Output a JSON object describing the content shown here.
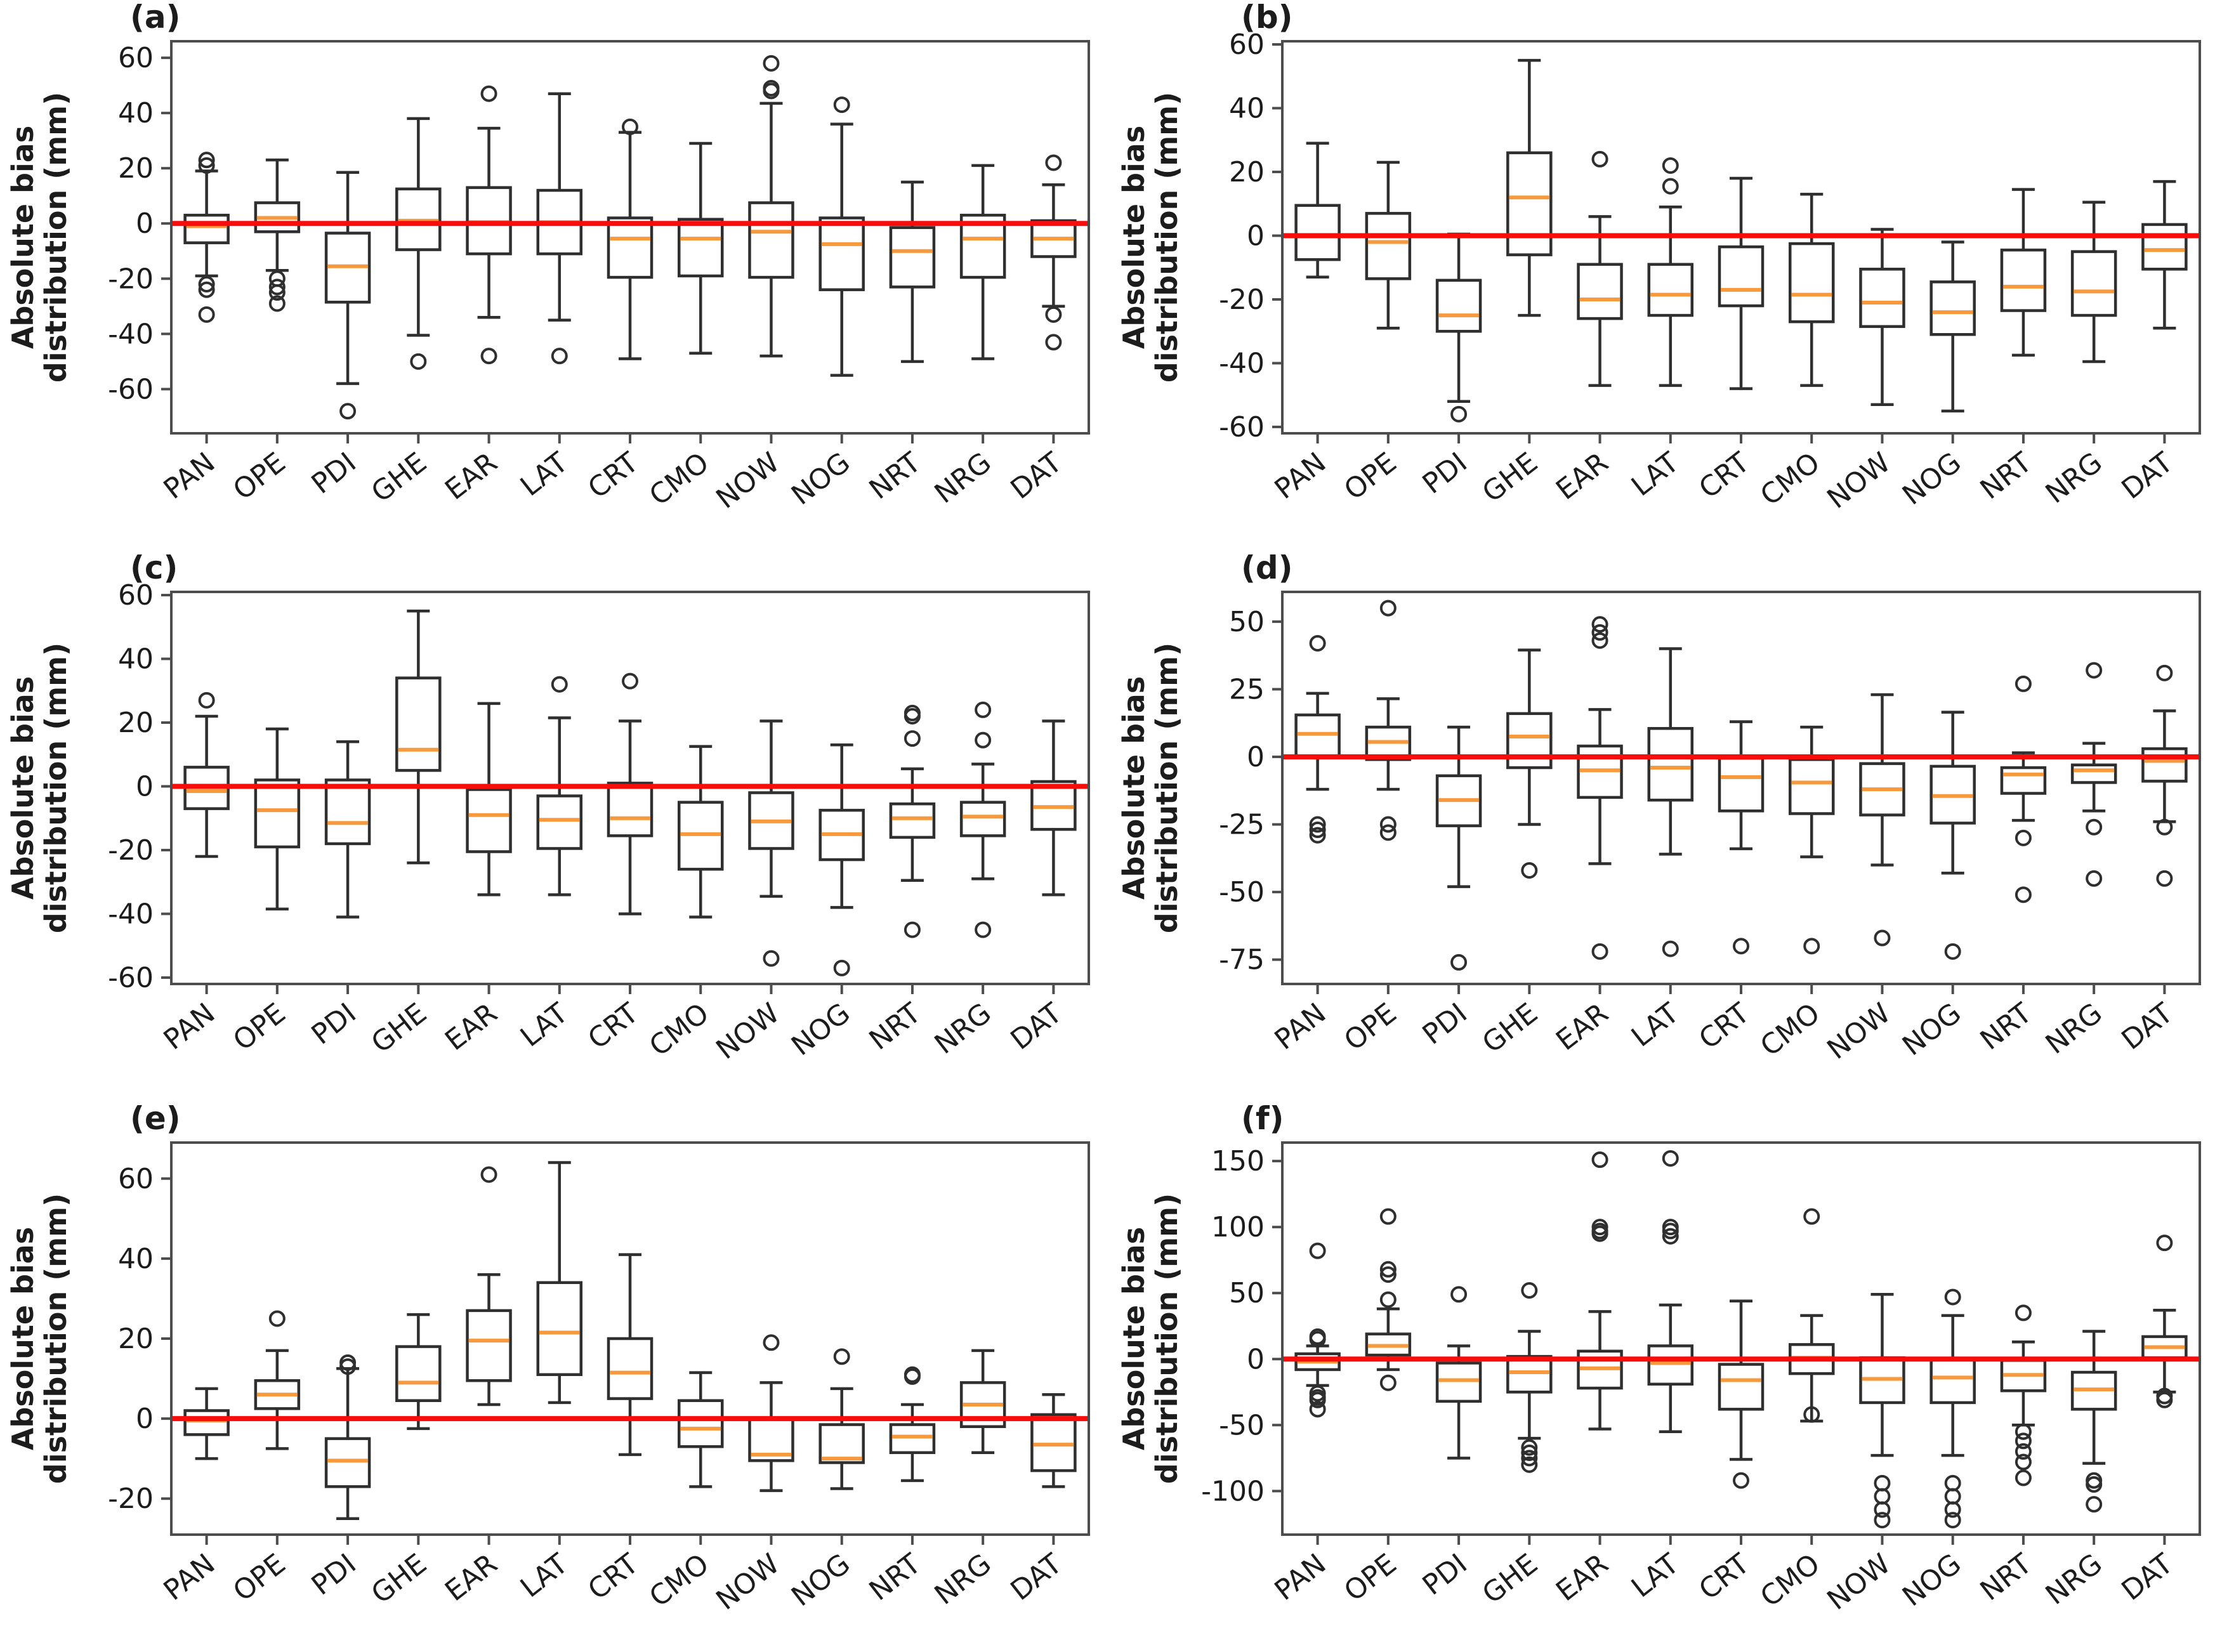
{
  "figure": {
    "ylabel_line1": "Absolute bias",
    "ylabel_line2": "distribution (mm)",
    "categories": [
      "PAN",
      "OPE",
      "PDI",
      "GHE",
      "EAR",
      "LAT",
      "CRT",
      "CMO",
      "NOW",
      "NOG",
      "NRT",
      "NRG",
      "DAT"
    ],
    "colors": {
      "box_stroke": "#2f2f2f",
      "median": "#f79a3d",
      "zero_line": "#f90d0b",
      "frame": "#4d4d4d",
      "tick_text": "#1c1c1c",
      "background": "#ffffff"
    }
  },
  "chart_data": [
    {
      "type": "box",
      "label": "(a)",
      "ylabel": "Absolute bias distribution (mm)",
      "yticks": [
        -60,
        -40,
        -20,
        0,
        20,
        40,
        60
      ],
      "ylim": [
        -76,
        66
      ],
      "zero_line": 0,
      "categories": [
        "PAN",
        "OPE",
        "PDI",
        "GHE",
        "EAR",
        "LAT",
        "CRT",
        "CMO",
        "NOW",
        "NOG",
        "NRT",
        "NRG",
        "DAT"
      ],
      "boxes": [
        {
          "lo": -19,
          "q1": -7,
          "med": -1,
          "q3": 3,
          "hi": 19,
          "out": [
            23,
            21,
            -22,
            -24,
            -33
          ]
        },
        {
          "lo": -17,
          "q1": -3,
          "med": 2,
          "q3": 7.5,
          "hi": 23,
          "out": [
            -20,
            -23,
            -25,
            -29
          ]
        },
        {
          "lo": -58,
          "q1": -28.5,
          "med": -15.5,
          "q3": -3.5,
          "hi": 18.5,
          "out": [
            -68
          ]
        },
        {
          "lo": -40.5,
          "q1": -9.5,
          "med": 1,
          "q3": 12.5,
          "hi": 38,
          "out": [
            -50
          ]
        },
        {
          "lo": -34,
          "q1": -11,
          "med": 0.5,
          "q3": 13,
          "hi": 34.5,
          "out": [
            47,
            -48
          ]
        },
        {
          "lo": -35,
          "q1": -11,
          "med": 0.5,
          "q3": 12,
          "hi": 47,
          "out": [
            -48
          ]
        },
        {
          "lo": -49,
          "q1": -19.5,
          "med": -5.5,
          "q3": 2,
          "hi": 33,
          "out": [
            35
          ]
        },
        {
          "lo": -47,
          "q1": -19,
          "med": -5.5,
          "q3": 1.5,
          "hi": 29,
          "out": []
        },
        {
          "lo": -48,
          "q1": -19.5,
          "med": -3,
          "q3": 7.5,
          "hi": 43.5,
          "out": [
            58,
            49,
            48
          ]
        },
        {
          "lo": -55,
          "q1": -24,
          "med": -7.5,
          "q3": 2,
          "hi": 36,
          "out": [
            43
          ]
        },
        {
          "lo": -50,
          "q1": -23,
          "med": -10,
          "q3": -1.5,
          "hi": 15,
          "out": []
        },
        {
          "lo": -49,
          "q1": -19.5,
          "med": -5.5,
          "q3": 3,
          "hi": 21,
          "out": []
        },
        {
          "lo": -30,
          "q1": -12,
          "med": -5.5,
          "q3": 1,
          "hi": 14,
          "out": [
            22,
            -33,
            -43
          ]
        }
      ]
    },
    {
      "type": "box",
      "label": "(b)",
      "ylabel": "Absolute bias distribution (mm)",
      "yticks": [
        -60,
        -40,
        -20,
        0,
        20,
        40,
        60
      ],
      "ylim": [
        -62,
        61
      ],
      "zero_line": 0,
      "categories": [
        "PAN",
        "OPE",
        "PDI",
        "GHE",
        "EAR",
        "LAT",
        "CRT",
        "CMO",
        "NOW",
        "NOG",
        "NRT",
        "NRG",
        "DAT"
      ],
      "boxes": [
        {
          "lo": -13,
          "q1": -7.5,
          "med": 0,
          "q3": 9.5,
          "hi": 29,
          "out": []
        },
        {
          "lo": -29,
          "q1": -13.5,
          "med": -2,
          "q3": 7,
          "hi": 23,
          "out": []
        },
        {
          "lo": -52,
          "q1": -30,
          "med": -25,
          "q3": -14,
          "hi": 0.5,
          "out": [
            -56
          ]
        },
        {
          "lo": -25,
          "q1": -6,
          "med": 12,
          "q3": 26,
          "hi": 55,
          "out": []
        },
        {
          "lo": -47,
          "q1": -26,
          "med": -20,
          "q3": -9,
          "hi": 6,
          "out": [
            24
          ]
        },
        {
          "lo": -47,
          "q1": -25,
          "med": -18.5,
          "q3": -9,
          "hi": 9,
          "out": [
            22,
            15.5
          ]
        },
        {
          "lo": -48,
          "q1": -22,
          "med": -17,
          "q3": -3.5,
          "hi": 18,
          "out": []
        },
        {
          "lo": -47,
          "q1": -27,
          "med": -18.5,
          "q3": -2.5,
          "hi": 13,
          "out": []
        },
        {
          "lo": -53,
          "q1": -28.5,
          "med": -21,
          "q3": -10.5,
          "hi": 2,
          "out": []
        },
        {
          "lo": -55,
          "q1": -31,
          "med": -24,
          "q3": -14.5,
          "hi": -2,
          "out": []
        },
        {
          "lo": -37.5,
          "q1": -23.5,
          "med": -16,
          "q3": -4.5,
          "hi": 14.5,
          "out": []
        },
        {
          "lo": -39.5,
          "q1": -25,
          "med": -17.5,
          "q3": -5,
          "hi": 10.5,
          "out": []
        },
        {
          "lo": -29,
          "q1": -10.5,
          "med": -4.5,
          "q3": 3.5,
          "hi": 17,
          "out": []
        }
      ]
    },
    {
      "type": "box",
      "label": "(c)",
      "ylabel": "Absolute bias distribution (mm)",
      "yticks": [
        -60,
        -40,
        -20,
        0,
        20,
        40,
        60
      ],
      "ylim": [
        -62,
        61
      ],
      "zero_line": 0,
      "categories": [
        "PAN",
        "OPE",
        "PDI",
        "GHE",
        "EAR",
        "LAT",
        "CRT",
        "CMO",
        "NOW",
        "NOG",
        "NRT",
        "NRG",
        "DAT"
      ],
      "boxes": [
        {
          "lo": -22,
          "q1": -7,
          "med": -1.5,
          "q3": 6,
          "hi": 22,
          "out": [
            27
          ]
        },
        {
          "lo": -38.5,
          "q1": -19,
          "med": -7.5,
          "q3": 2,
          "hi": 18,
          "out": []
        },
        {
          "lo": -41,
          "q1": -18,
          "med": -11.5,
          "q3": 2,
          "hi": 14,
          "out": []
        },
        {
          "lo": -24,
          "q1": 5,
          "med": 11.5,
          "q3": 34,
          "hi": 55,
          "out": []
        },
        {
          "lo": -34,
          "q1": -20.5,
          "med": -9,
          "q3": -1,
          "hi": 26,
          "out": []
        },
        {
          "lo": -34,
          "q1": -19.5,
          "med": -10.5,
          "q3": -3,
          "hi": 21.5,
          "out": [
            32
          ]
        },
        {
          "lo": -40,
          "q1": -15.5,
          "med": -10,
          "q3": 1,
          "hi": 20.5,
          "out": [
            33
          ]
        },
        {
          "lo": -41,
          "q1": -26,
          "med": -15,
          "q3": -5,
          "hi": 12.5,
          "out": []
        },
        {
          "lo": -34.5,
          "q1": -19.5,
          "med": -11,
          "q3": -2,
          "hi": 20.5,
          "out": [
            -54
          ]
        },
        {
          "lo": -38,
          "q1": -23,
          "med": -15,
          "q3": -7.5,
          "hi": 13,
          "out": [
            -57
          ]
        },
        {
          "lo": -29.5,
          "q1": -16,
          "med": -10,
          "q3": -5.5,
          "hi": 5.5,
          "out": [
            23,
            22,
            15,
            -45
          ]
        },
        {
          "lo": -29,
          "q1": -15.5,
          "med": -9.5,
          "q3": -5,
          "hi": 7,
          "out": [
            24,
            14.5,
            -45
          ]
        },
        {
          "lo": -34,
          "q1": -13.5,
          "med": -6.5,
          "q3": 1.5,
          "hi": 20.5,
          "out": []
        }
      ]
    },
    {
      "type": "box",
      "label": "(d)",
      "ylabel": "Absolute bias distribution (mm)",
      "yticks": [
        -75,
        -50,
        -25,
        0,
        25,
        50
      ],
      "ylim": [
        -84,
        61
      ],
      "zero_line": 0,
      "categories": [
        "PAN",
        "OPE",
        "PDI",
        "GHE",
        "EAR",
        "LAT",
        "CRT",
        "CMO",
        "NOW",
        "NOG",
        "NRT",
        "NRG",
        "DAT"
      ],
      "boxes": [
        {
          "lo": -12,
          "q1": 0,
          "med": 8.5,
          "q3": 15.5,
          "hi": 23.5,
          "out": [
            42,
            -25,
            -27,
            -29
          ]
        },
        {
          "lo": -12,
          "q1": -1,
          "med": 5.5,
          "q3": 11,
          "hi": 21.5,
          "out": [
            55,
            -25,
            -28
          ]
        },
        {
          "lo": -48,
          "q1": -25.5,
          "med": -16,
          "q3": -7,
          "hi": 11,
          "out": [
            -76
          ]
        },
        {
          "lo": -25,
          "q1": -4,
          "med": 7.5,
          "q3": 16,
          "hi": 39.5,
          "out": [
            -42
          ]
        },
        {
          "lo": -39.5,
          "q1": -15,
          "med": -5,
          "q3": 4,
          "hi": 17.5,
          "out": [
            49,
            46,
            43,
            -72
          ]
        },
        {
          "lo": -36,
          "q1": -16,
          "med": -4,
          "q3": 10.5,
          "hi": 40,
          "out": [
            -71
          ]
        },
        {
          "lo": -34,
          "q1": -20,
          "med": -7.5,
          "q3": -0.5,
          "hi": 13,
          "out": [
            -70
          ]
        },
        {
          "lo": -37,
          "q1": -21,
          "med": -9.5,
          "q3": -1,
          "hi": 11,
          "out": [
            -70
          ]
        },
        {
          "lo": -40,
          "q1": -21.5,
          "med": -12,
          "q3": -2.5,
          "hi": 23,
          "out": [
            -67
          ]
        },
        {
          "lo": -43,
          "q1": -24.5,
          "med": -14.5,
          "q3": -3.5,
          "hi": 16.5,
          "out": [
            -72
          ]
        },
        {
          "lo": -23.5,
          "q1": -13.5,
          "med": -6.5,
          "q3": -4,
          "hi": 1.5,
          "out": [
            27,
            -30,
            -51
          ]
        },
        {
          "lo": -20,
          "q1": -9.5,
          "med": -5,
          "q3": -3,
          "hi": 5,
          "out": [
            32,
            -26,
            -45
          ]
        },
        {
          "lo": -24,
          "q1": -9,
          "med": -1.5,
          "q3": 3,
          "hi": 17,
          "out": [
            31,
            -26,
            -45
          ]
        }
      ]
    },
    {
      "type": "box",
      "label": "(e)",
      "ylabel": "Absolute bias distribution (mm)",
      "yticks": [
        -20,
        0,
        20,
        40,
        60
      ],
      "ylim": [
        -29,
        69
      ],
      "zero_line": 0,
      "categories": [
        "PAN",
        "OPE",
        "PDI",
        "GHE",
        "EAR",
        "LAT",
        "CRT",
        "CMO",
        "NOW",
        "NOG",
        "NRT",
        "NRG",
        "DAT"
      ],
      "boxes": [
        {
          "lo": -10,
          "q1": -4,
          "med": -0.5,
          "q3": 2,
          "hi": 7.5,
          "out": []
        },
        {
          "lo": -7.5,
          "q1": 2.5,
          "med": 6,
          "q3": 9.5,
          "hi": 17,
          "out": [
            25
          ]
        },
        {
          "lo": -25,
          "q1": -17,
          "med": -10.5,
          "q3": -5,
          "hi": 12.5,
          "out": [
            14,
            13
          ]
        },
        {
          "lo": -2.5,
          "q1": 4.5,
          "med": 9,
          "q3": 18,
          "hi": 26,
          "out": []
        },
        {
          "lo": 3.5,
          "q1": 9.5,
          "med": 19.5,
          "q3": 27,
          "hi": 36,
          "out": [
            61
          ]
        },
        {
          "lo": 4,
          "q1": 11,
          "med": 21.5,
          "q3": 34,
          "hi": 64,
          "out": []
        },
        {
          "lo": -9,
          "q1": 5,
          "med": 11.5,
          "q3": 20,
          "hi": 41,
          "out": []
        },
        {
          "lo": -17,
          "q1": -7,
          "med": -2.5,
          "q3": 4.5,
          "hi": 11.5,
          "out": []
        },
        {
          "lo": -18,
          "q1": -10.5,
          "med": -9,
          "q3": 0,
          "hi": 9,
          "out": [
            19
          ]
        },
        {
          "lo": -17.5,
          "q1": -11,
          "med": -10,
          "q3": -1.5,
          "hi": 7.5,
          "out": [
            15.5
          ]
        },
        {
          "lo": -15.5,
          "q1": -8.5,
          "med": -4.5,
          "q3": -1.5,
          "hi": 3.5,
          "out": [
            11,
            10.5
          ]
        },
        {
          "lo": -8.5,
          "q1": -2,
          "med": 3.5,
          "q3": 9,
          "hi": 17,
          "out": []
        },
        {
          "lo": -17,
          "q1": -13,
          "med": -6.5,
          "q3": 1,
          "hi": 6,
          "out": []
        }
      ]
    },
    {
      "type": "box",
      "label": "(f)",
      "ylabel": "Absolute bias distribution (mm)",
      "yticks": [
        -100,
        -50,
        0,
        50,
        100,
        150
      ],
      "ylim": [
        -133,
        164
      ],
      "zero_line": 0,
      "categories": [
        "PAN",
        "OPE",
        "PDI",
        "GHE",
        "EAR",
        "LAT",
        "CRT",
        "CMO",
        "NOW",
        "NOG",
        "NRT",
        "NRG",
        "DAT"
      ],
      "boxes": [
        {
          "lo": -20,
          "q1": -8,
          "med": -2,
          "q3": 4,
          "hi": 10,
          "out": [
            82,
            17,
            15,
            -26,
            -29,
            -31,
            -38
          ]
        },
        {
          "lo": -8,
          "q1": 3,
          "med": 10,
          "q3": 19,
          "hi": 38,
          "out": [
            108,
            68,
            64,
            45,
            -18
          ]
        },
        {
          "lo": -75,
          "q1": -32,
          "med": -16,
          "q3": -3,
          "hi": 10,
          "out": [
            49
          ]
        },
        {
          "lo": -60,
          "q1": -25,
          "med": -10,
          "q3": 2,
          "hi": 21,
          "out": [
            52,
            -67,
            -71,
            -75,
            -80
          ]
        },
        {
          "lo": -53,
          "q1": -22,
          "med": -7,
          "q3": 6,
          "hi": 36,
          "out": [
            151,
            100,
            97,
            95
          ]
        },
        {
          "lo": -55,
          "q1": -19,
          "med": -3,
          "q3": 10,
          "hi": 41,
          "out": [
            152,
            100,
            97,
            93
          ]
        },
        {
          "lo": -76,
          "q1": -38,
          "med": -16,
          "q3": -4,
          "hi": 44,
          "out": [
            -92
          ]
        },
        {
          "lo": -47,
          "q1": -11,
          "med": 1,
          "q3": 11,
          "hi": 33,
          "out": [
            108,
            -42
          ]
        },
        {
          "lo": -73,
          "q1": -33,
          "med": -15,
          "q3": 1,
          "hi": 49,
          "out": [
            -94,
            -104,
            -114,
            -122
          ]
        },
        {
          "lo": -73,
          "q1": -33,
          "med": -14,
          "q3": 0,
          "hi": 33,
          "out": [
            47,
            -94,
            -104,
            -114,
            -122
          ]
        },
        {
          "lo": -50,
          "q1": -24,
          "med": -12,
          "q3": -1,
          "hi": 13,
          "out": [
            35,
            -55,
            -62,
            -70,
            -78,
            -90
          ]
        },
        {
          "lo": -79,
          "q1": -38,
          "med": -23,
          "q3": -10,
          "hi": 21,
          "out": [
            -92,
            -95,
            -110
          ]
        },
        {
          "lo": -25,
          "q1": 1,
          "med": 9,
          "q3": 17,
          "hi": 37,
          "out": [
            88,
            -28,
            -31
          ]
        }
      ]
    }
  ]
}
